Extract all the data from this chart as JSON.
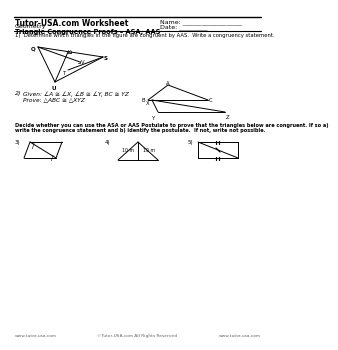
{
  "title": "Tutor-USA.com Worksheet",
  "subject": "Geometry",
  "topic": "Triangle Congruence Proofs – ASA, AAS",
  "name_label": "Name: ___________________",
  "date_label": "Date: _________",
  "q1_text": "1)  Determine which triangles in the figure are congruent by AAS.  Write a congruency statement.",
  "q2_number": "2)",
  "q2_given": "Given: ∠A ≅ ∠X, ∠B ≅ ∠Y, BC ≅ YZ",
  "q2_prove": "Prove: △ABC ≅ △XYZ",
  "q3_line1": "Decide whether you can use the ASA or AAS Postulate to prove that the triangles below are congruent. If so a)",
  "q3_line2": "write the congruence statement and b) identify the postulate.  If not, write not possible.",
  "footer_left": "www.tutor-usa.com",
  "footer_center": "©Tutor-USA.com All Rights Reserved",
  "footer_right": "www.tutor-usa.com",
  "bg_color": "#ffffff",
  "line_color": "#000000",
  "text_color": "#000000"
}
